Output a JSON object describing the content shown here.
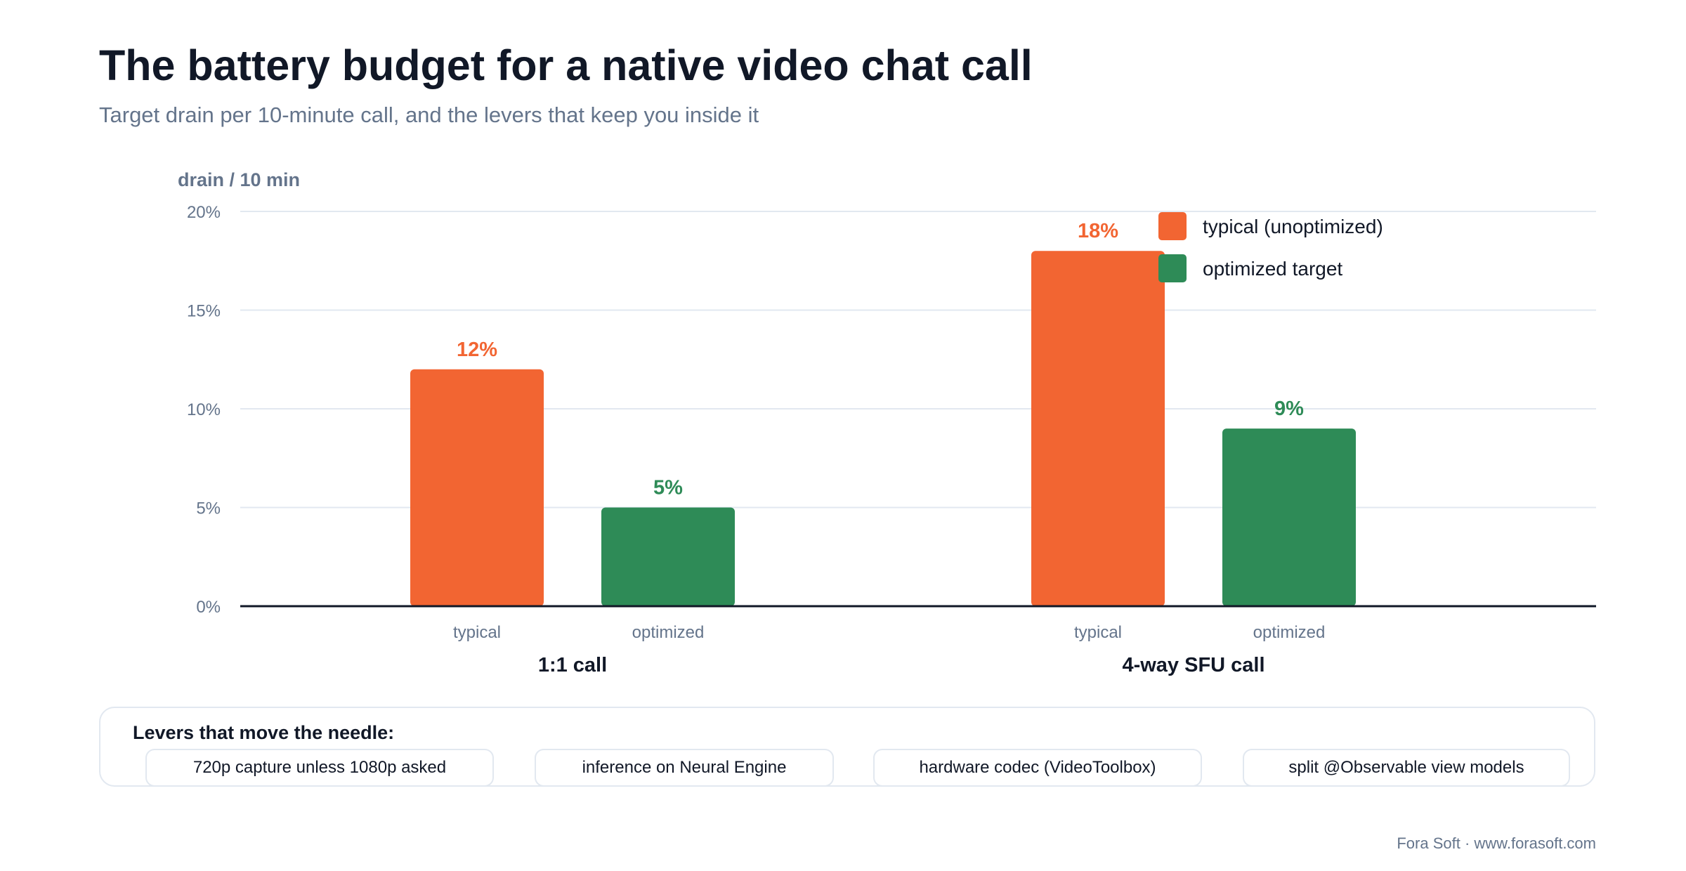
{
  "header": {
    "title": "The battery budget for a native video chat call",
    "subtitle": "Target drain per 10-minute call, and the levers that keep you inside it"
  },
  "chart_data": {
    "type": "bar",
    "ylabel": "drain / 10 min",
    "ylim": [
      0,
      20
    ],
    "yticks": [
      {
        "value": 0,
        "label": "0%"
      },
      {
        "value": 5,
        "label": "5%"
      },
      {
        "value": 10,
        "label": "10%"
      },
      {
        "value": 15,
        "label": "15%"
      },
      {
        "value": 20,
        "label": "20%"
      }
    ],
    "grid": true,
    "legend_position": "top-right",
    "groups": [
      "1:1 call",
      "4-way SFU call"
    ],
    "bar_labels": [
      "typical",
      "optimized"
    ],
    "series": [
      {
        "name": "typical (unoptimized)",
        "color": "#f26532",
        "values": [
          12,
          18
        ],
        "value_labels": [
          "12%",
          "18%"
        ]
      },
      {
        "name": "optimized target",
        "color": "#2e8b57",
        "values": [
          5,
          9
        ],
        "value_labels": [
          "5%",
          "9%"
        ]
      }
    ]
  },
  "levers": {
    "title": "Levers that move the needle:",
    "items": [
      "720p capture unless 1080p asked",
      "inference on Neural Engine",
      "hardware codec (VideoToolbox)",
      "split @Observable view models"
    ]
  },
  "footer": {
    "credit": "Fora Soft · www.forasoft.com"
  },
  "colors": {
    "axis": "#111827",
    "grid": "#e2e8f0",
    "muted_text": "#64748b"
  }
}
